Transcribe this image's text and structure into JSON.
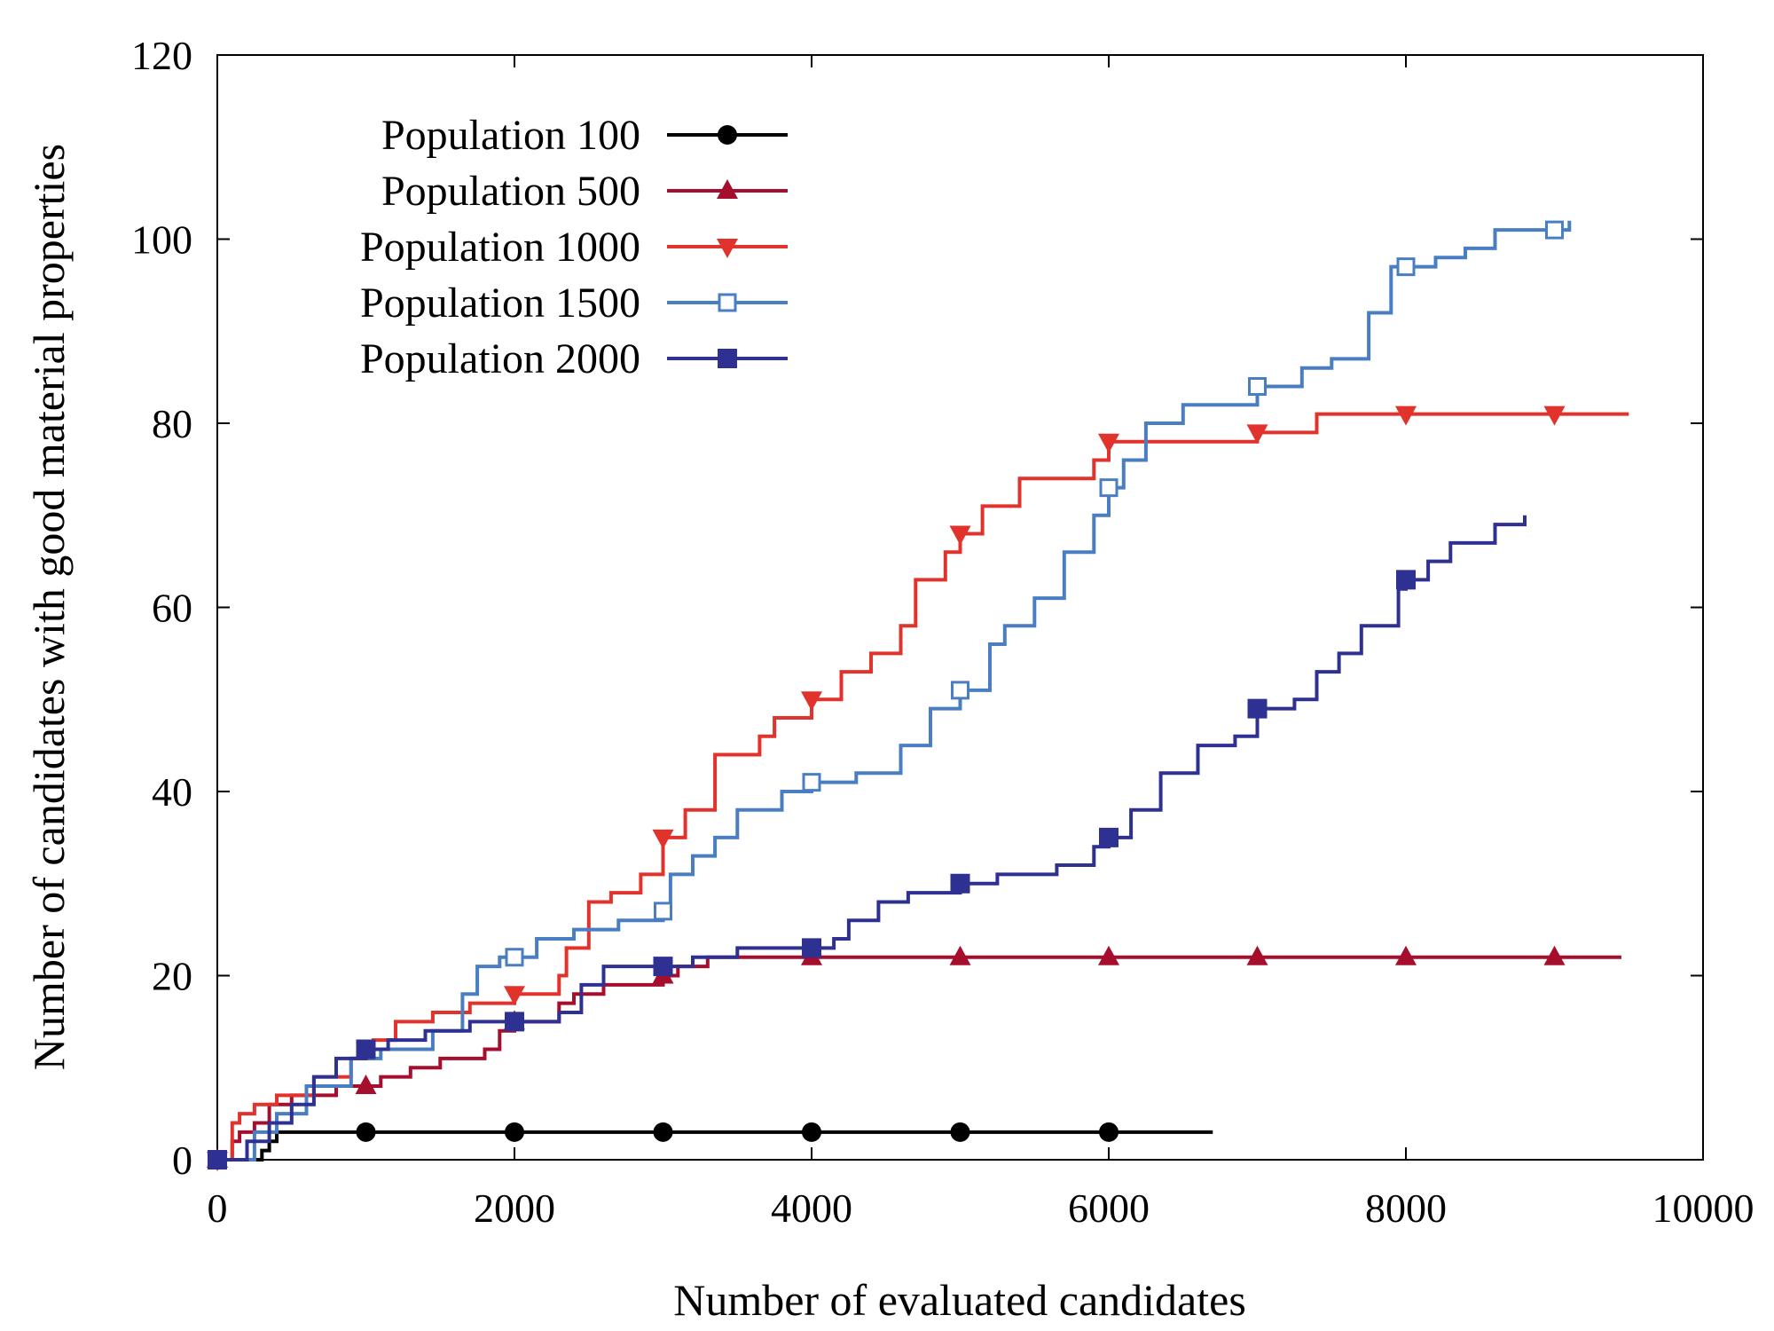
{
  "chart_data": {
    "type": "line",
    "line_style": "step",
    "title": "",
    "xlabel": "Number of evaluated candidates",
    "ylabel": "Number of candidates with good material properties",
    "xlim": [
      0,
      10000
    ],
    "ylim": [
      0,
      120
    ],
    "xticks": [
      0,
      2000,
      4000,
      6000,
      8000,
      10000
    ],
    "yticks": [
      0,
      20,
      40,
      60,
      80,
      100,
      120
    ],
    "legend_position": "top-left",
    "grid": false,
    "series": [
      {
        "name": "Population 100",
        "color": "#000000",
        "marker": "circle",
        "markers_x": [
          0,
          1000,
          2000,
          3000,
          4000,
          5000,
          6000
        ],
        "x": [
          0,
          300,
          350,
          400,
          6700
        ],
        "y": [
          0,
          1,
          2,
          3,
          3
        ]
      },
      {
        "name": "Population 500",
        "color": "#a50f2d",
        "marker": "triangle-up",
        "markers_x": [
          0,
          1000,
          2000,
          3000,
          4000,
          5000,
          6000,
          7000,
          8000,
          9000
        ],
        "x": [
          0,
          100,
          150,
          250,
          350,
          500,
          800,
          1100,
          1300,
          1500,
          1800,
          1900,
          2000,
          2300,
          2400,
          2600,
          3000,
          3100,
          3300,
          9450
        ],
        "y": [
          0,
          2,
          3,
          4,
          6,
          7,
          8,
          9,
          10,
          11,
          12,
          14,
          15,
          17,
          18,
          19,
          20,
          21,
          22,
          22
        ]
      },
      {
        "name": "Population 1000",
        "color": "#e2322c",
        "marker": "triangle-down",
        "markers_x": [
          0,
          2000,
          3000,
          4000,
          5000,
          6000,
          7000,
          8000,
          9000
        ],
        "x": [
          0,
          100,
          150,
          250,
          400,
          650,
          900,
          1050,
          1200,
          1450,
          1700,
          2000,
          2300,
          2350,
          2500,
          2650,
          2850,
          3000,
          3150,
          3350,
          3650,
          3750,
          4000,
          4200,
          4400,
          4600,
          4700,
          4900,
          5000,
          5150,
          5400,
          5900,
          6000,
          6500,
          7000,
          7400,
          8000,
          9000,
          9500
        ],
        "y": [
          0,
          4,
          5,
          6,
          7,
          9,
          11,
          13,
          15,
          16,
          17,
          18,
          20,
          23,
          28,
          29,
          31,
          35,
          38,
          44,
          46,
          48,
          50,
          53,
          55,
          58,
          63,
          66,
          68,
          71,
          74,
          76,
          78,
          78,
          79,
          81,
          81,
          81,
          81
        ]
      },
      {
        "name": "Population 1500",
        "color": "#4a7ec2",
        "marker": "square-open",
        "markers_x": [
          0,
          2000,
          3000,
          4000,
          5000,
          6000,
          7000,
          8000,
          9000
        ],
        "x": [
          0,
          250,
          400,
          600,
          900,
          1100,
          1450,
          1650,
          1750,
          1900,
          2000,
          2150,
          2400,
          2700,
          3000,
          3050,
          3200,
          3350,
          3500,
          3800,
          4000,
          4300,
          4600,
          4800,
          5000,
          5200,
          5300,
          5500,
          5700,
          5900,
          6000,
          6100,
          6250,
          6500,
          6800,
          7000,
          7300,
          7500,
          7750,
          7900,
          8000,
          8200,
          8400,
          8600,
          9000,
          9100
        ],
        "y": [
          0,
          3,
          5,
          8,
          11,
          12,
          14,
          18,
          21,
          22,
          22,
          24,
          25,
          26,
          27,
          31,
          33,
          35,
          38,
          40,
          41,
          42,
          45,
          49,
          51,
          56,
          58,
          61,
          66,
          70,
          73,
          76,
          80,
          82,
          82,
          84,
          86,
          87,
          92,
          97,
          97,
          98,
          99,
          101,
          101,
          102
        ]
      },
      {
        "name": "Population 2000",
        "color": "#2e3192",
        "marker": "square-filled",
        "markers_x": [
          0,
          1000,
          2000,
          3000,
          4000,
          5000,
          6000,
          7000,
          8000
        ],
        "x": [
          0,
          200,
          350,
          500,
          650,
          800,
          1000,
          1150,
          1400,
          1700,
          2000,
          2300,
          2450,
          2600,
          2800,
          3000,
          3200,
          3500,
          4000,
          4150,
          4250,
          4450,
          4650,
          5000,
          5250,
          5650,
          5900,
          6000,
          6150,
          6350,
          6600,
          6850,
          7000,
          7250,
          7400,
          7550,
          7700,
          7950,
          8000,
          8150,
          8300,
          8600,
          8800
        ],
        "y": [
          0,
          2,
          4,
          6,
          9,
          11,
          12,
          13,
          14,
          15,
          15,
          16,
          19,
          21,
          21,
          21,
          22,
          23,
          23,
          24,
          26,
          28,
          29,
          30,
          31,
          32,
          34,
          35,
          38,
          42,
          45,
          46,
          49,
          50,
          53,
          55,
          58,
          62,
          63,
          65,
          67,
          69,
          70
        ]
      }
    ]
  }
}
